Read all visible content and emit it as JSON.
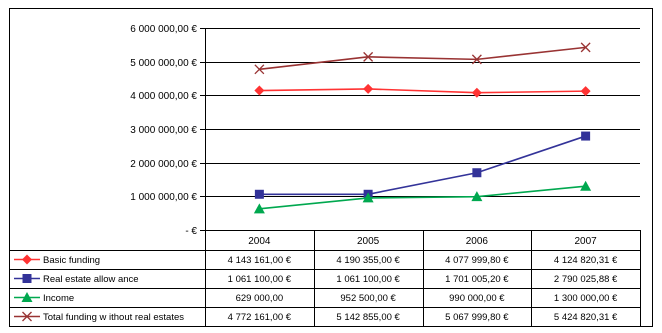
{
  "chart_data": {
    "type": "line",
    "categories": [
      "2004",
      "2005",
      "2006",
      "2007"
    ],
    "ylim": [
      0,
      6000000
    ],
    "y_ticks": [
      0,
      1000000,
      2000000,
      3000000,
      4000000,
      5000000,
      6000000
    ],
    "y_tick_labels": [
      "- €",
      "1 000 000,00 €",
      "2 000 000,00 €",
      "3 000 000,00 €",
      "4 000 000,00 €",
      "5 000 000,00 €",
      "6 000 000,00 €"
    ],
    "grid": true,
    "legend_placement": "data table below chart",
    "series": [
      {
        "name": "Basic funding",
        "color": "#ff3333",
        "marker": "diamond",
        "values": [
          4143161.0,
          4190355.0,
          4077999.8,
          4124820.31
        ],
        "labels": [
          "4 143 161,00 €",
          "4 190 355,00 €",
          "4 077 999,80 €",
          "4 124 820,31 €"
        ]
      },
      {
        "name": "Real estate allow ance",
        "color": "#333399",
        "marker": "square",
        "values": [
          1061100.0,
          1061100.0,
          1701005.2,
          2790025.88
        ],
        "labels": [
          "1 061 100,00 €",
          "1 061 100,00 €",
          "1 701 005,20 €",
          "2 790 025,88 €"
        ]
      },
      {
        "name": "Income",
        "color": "#00a84f",
        "marker": "triangle",
        "values": [
          629000.0,
          952500.0,
          990000.0,
          1300000.0
        ],
        "labels": [
          "629 000,00",
          "952 500,00 €",
          "990 000,00 €",
          "1 300 000,00 €"
        ]
      },
      {
        "name": "Total funding w ithout real estates",
        "color": "#993333",
        "marker": "x",
        "values": [
          4772161.0,
          5142855.0,
          5067999.8,
          5424820.31
        ],
        "labels": [
          "4 772 161,00 €",
          "5 142 855,00 €",
          "5 067 999,80 €",
          "5 424 820,31 €"
        ]
      }
    ]
  }
}
